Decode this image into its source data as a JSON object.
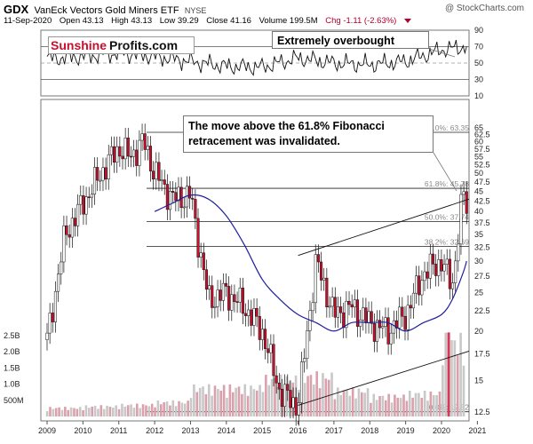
{
  "header": {
    "ticker": "GDX",
    "name": "VanEck Vectors Gold Miners ETF",
    "exchange": "NYSE",
    "source": "@ StockCharts.com",
    "date": "11-Sep-2020",
    "open": "Open 43.13",
    "high": "High 43.13",
    "low": "Low 39.29",
    "close": "Close 41.16",
    "volume": "Volume 199.5M",
    "change": "Chg -1.11 (-2.63%)"
  },
  "logo": {
    "part1": "Sunshine",
    "part2": "Profits.com"
  },
  "annotations": {
    "overbought": "Extremely overbought",
    "fib_line1": "The move above the 61.8% Fibonacci",
    "fib_line2": "retracement was invalidated."
  },
  "colors": {
    "up": "#ffffff",
    "down": "#c8102e",
    "ma": "#1f1f9e",
    "volume": "#c8c8c8",
    "grid": "#cccccc"
  },
  "chart_data": [
    {
      "type": "line",
      "panel": "RSI",
      "y_ticks": [
        90,
        70,
        50,
        30,
        10
      ],
      "reference_lines": [
        70,
        50,
        30
      ],
      "x": [
        2009,
        2010,
        2011,
        2012,
        2013,
        2014,
        2015,
        2016,
        2017,
        2018,
        2019,
        2020,
        2020.7
      ],
      "values": [
        55,
        58,
        62,
        58,
        52,
        46,
        45,
        56,
        50,
        48,
        52,
        66,
        70
      ]
    },
    {
      "type": "candlestick",
      "panel": "price",
      "scale": "log",
      "x_labels": [
        "2009",
        "2010",
        "2011",
        "2012",
        "2013",
        "2014",
        "2015",
        "2016",
        "2017",
        "2018",
        "2019",
        "2020",
        "2021"
      ],
      "y_ticks": [
        12.5,
        15,
        17.5,
        20,
        22.5,
        25,
        27.5,
        30,
        32.5,
        35,
        37.5,
        40,
        42.5,
        45,
        47.5,
        50,
        52.5,
        55,
        57.5,
        60,
        62.5,
        65
      ],
      "fibonacci": [
        {
          "label": "100.0%: 63.35",
          "level": 63.35
        },
        {
          "label": "61.8%: 45.78",
          "level": 45.78
        },
        {
          "label": "50.0%: 37.74",
          "level": 37.74
        },
        {
          "label": "38.2%: 32.69",
          "level": 32.69
        },
        {
          "label": "0.0%: 12.52",
          "level": 12.52
        }
      ],
      "x": [
        2009,
        2009.5,
        2010,
        2010.5,
        2011,
        2011.3,
        2011.7,
        2012,
        2012.5,
        2013,
        2013.5,
        2014,
        2014.5,
        2015,
        2015.5,
        2016,
        2016.5,
        2017,
        2017.5,
        2018,
        2018.5,
        2019,
        2019.5,
        2020,
        2020.3,
        2020.6,
        2020.7
      ],
      "close": [
        19,
        35,
        42,
        50,
        58,
        55,
        60,
        50,
        43,
        44,
        24,
        25,
        23,
        20,
        14,
        13,
        30,
        22,
        23,
        21,
        20,
        22,
        28,
        30,
        26,
        45,
        41
      ],
      "ma_40": [
        null,
        null,
        null,
        null,
        null,
        null,
        null,
        40,
        42,
        44,
        43,
        39,
        33,
        27,
        24,
        22,
        21,
        20,
        21,
        21,
        21,
        20,
        21,
        22,
        24,
        28,
        30
      ]
    },
    {
      "type": "bar",
      "panel": "volume",
      "y_ticks": [
        "2.5B",
        "2.0B",
        "1.5B",
        "1.0B",
        "500M"
      ],
      "x": [
        2009,
        2010,
        2011,
        2012,
        2013,
        2014,
        2015,
        2016,
        2017,
        2018,
        2019,
        2020
      ],
      "values_billion": [
        0.3,
        0.35,
        0.4,
        0.5,
        1.0,
        1.0,
        1.3,
        1.4,
        0.9,
        0.7,
        0.8,
        2.6
      ]
    }
  ]
}
